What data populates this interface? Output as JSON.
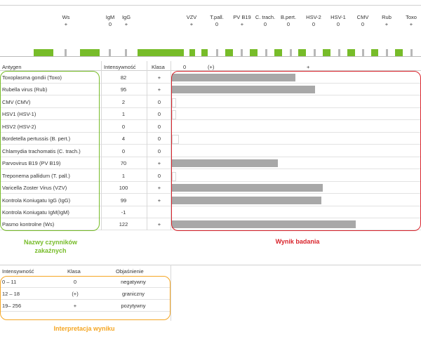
{
  "strip": {
    "columns": [
      {
        "name": "Ws",
        "value": "+"
      },
      {
        "name": "IgM",
        "value": "0"
      },
      {
        "name": "IgG",
        "value": "+"
      },
      {
        "name": "VZV",
        "value": "+"
      },
      {
        "name": "T.pall.",
        "value": "0"
      },
      {
        "name": "PV B19",
        "value": "+"
      },
      {
        "name": "C. trach.",
        "value": "0"
      },
      {
        "name": "B.pert.",
        "value": "0"
      },
      {
        "name": "HSV-2",
        "value": "0"
      },
      {
        "name": "HSV-1",
        "value": "0"
      },
      {
        "name": "CMV",
        "value": "0"
      },
      {
        "name": "Rub",
        "value": "+"
      },
      {
        "name": "Toxo",
        "value": "+"
      }
    ],
    "colors": {
      "positive": "#77bc29",
      "control": "#b8b8b8"
    }
  },
  "table": {
    "headers": {
      "antigen": "Antygen",
      "intensity": "Intensywność",
      "class": "Klasa",
      "scale_0": "0",
      "scale_mid": "(+)",
      "scale_pos": "+"
    },
    "rows": [
      {
        "antigen": "Toxoplasma gondii (Toxo)",
        "intensity": "82",
        "class": "+",
        "value": 82
      },
      {
        "antigen": "Rubella virus (Rub)",
        "intensity": "95",
        "class": "+",
        "value": 95
      },
      {
        "antigen": "CMV (CMV)",
        "intensity": "2",
        "class": "0",
        "value": 2
      },
      {
        "antigen": "HSV1 (HSV-1)",
        "intensity": "1",
        "class": "0",
        "value": 1
      },
      {
        "antigen": "HSV2 (HSV-2)",
        "intensity": "0",
        "class": "0",
        "value": 0
      },
      {
        "antigen": "Bordetella pertussis (B. pert.)",
        "intensity": "4",
        "class": "0",
        "value": 4
      },
      {
        "antigen": "Chlamydia trachomatis (C. trach.)",
        "intensity": "0",
        "class": "0",
        "value": 0
      },
      {
        "antigen": "Parvovirus B19 (PV B19)",
        "intensity": "70",
        "class": "+",
        "value": 70
      },
      {
        "antigen": "Treponema pallidum (T. pall.)",
        "intensity": "1",
        "class": "0",
        "value": 1
      },
      {
        "antigen": "Varicella Zoster Virus (VZV)",
        "intensity": "100",
        "class": "+",
        "value": 100
      },
      {
        "antigen": "Kontrola Koniugatu IgG (IgG)",
        "intensity": "99",
        "class": "+",
        "value": 99
      },
      {
        "antigen": "Kontrola Koniugatu IgM(IgM)",
        "intensity": "-1",
        "class": "",
        "value": -1
      },
      {
        "antigen": "Pasmo kontrolne (Ws)",
        "intensity": "122",
        "class": "+",
        "value": 122
      }
    ],
    "bar_color": "#a8a8a8"
  },
  "captions": {
    "names": "Nazwy czynników zakaźnych",
    "result": "Wynik badania",
    "interpretation": "Interpretacja wyniku"
  },
  "caption_colors": {
    "names": "#77bc29",
    "result": "#d9242c",
    "interpretation": "#f5a623"
  },
  "legend": {
    "headers": {
      "intensity": "Intensywność",
      "class": "Klasa",
      "explanation": "Objaśnienie"
    },
    "rows": [
      {
        "range": "0 – 11",
        "class": "0",
        "explanation": "negatywny"
      },
      {
        "range": "12 – 18",
        "class": "(+)",
        "explanation": "graniczny"
      },
      {
        "range": "19– 256",
        "class": "+",
        "explanation": "pozytywny"
      }
    ]
  }
}
